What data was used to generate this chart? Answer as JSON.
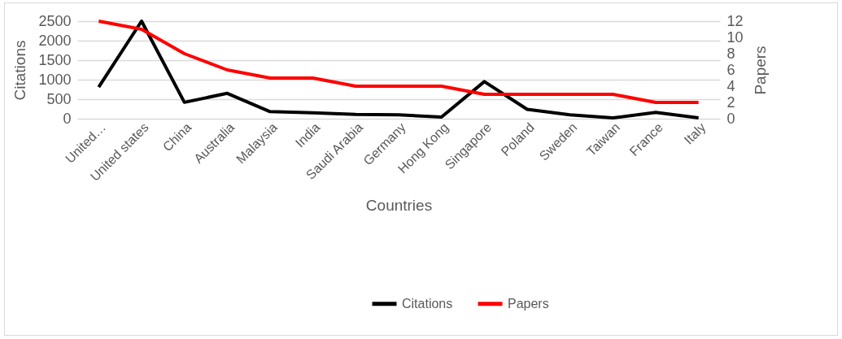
{
  "chart_data": {
    "type": "line",
    "xlabel": "Countries",
    "ylabel": "Citations",
    "y2label": "Papers",
    "categories": [
      "United…",
      "United states",
      "China",
      "Australia",
      "Malaysia",
      "India",
      "Saudi Arabia",
      "Germany",
      "Hong Kong",
      "Singapore",
      "Poland",
      "Sweden",
      "Taiwan",
      "France",
      "Italy"
    ],
    "series": [
      {
        "name": "Citations",
        "color": "#000000",
        "values": [
          810,
          2500,
          420,
          650,
          180,
          150,
          110,
          100,
          40,
          950,
          240,
          100,
          20,
          160,
          20
        ]
      },
      {
        "name": "Papers",
        "color": "#ff0000",
        "axis": "y2",
        "values": [
          12,
          11,
          8,
          6,
          5,
          5,
          4,
          4,
          4,
          3,
          3,
          3,
          3,
          2,
          2
        ]
      }
    ],
    "ylim": [
      0,
      2500
    ],
    "yticks": [
      0,
      500,
      1000,
      1500,
      2000,
      2500
    ],
    "y2lim": [
      0,
      12
    ],
    "y2ticks": [
      0,
      2,
      4,
      6,
      8,
      10,
      12
    ],
    "grid": "y",
    "legend": "bottom",
    "marker": "none",
    "line_style": "solid"
  }
}
